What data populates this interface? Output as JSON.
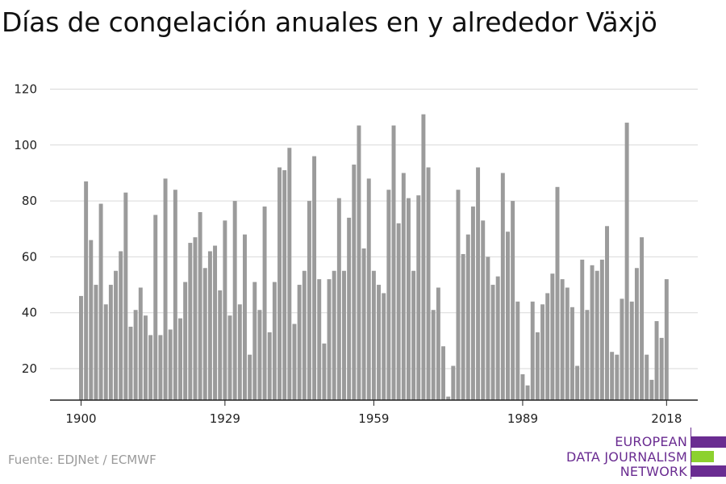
{
  "title": "Días de congelación anuales en y alrededor Växjö",
  "source": "Fuente: EDJNet / ECMWF",
  "logo": {
    "lines": [
      "EUROPEAN",
      "DATA JOURNALISM",
      "NETWORK"
    ],
    "colors": {
      "purple": "#6a2c91",
      "green": "#8cd12e"
    }
  },
  "colors": {
    "bar": "#9b9b9b",
    "grid": "#d9d9d9",
    "axis": "#222222"
  },
  "chart_data": {
    "type": "bar",
    "title": "Días de congelación anuales en y alrededor Växjö",
    "xlabel": "",
    "ylabel": "",
    "x_ticks": [
      1900,
      1929,
      1959,
      1989,
      2018
    ],
    "y_ticks": [
      20,
      40,
      60,
      80,
      100,
      120
    ],
    "ylim": [
      8,
      120
    ],
    "grid": true,
    "x_start": 1900,
    "x_end": 2018,
    "values": [
      46,
      87,
      66,
      50,
      79,
      43,
      50,
      55,
      62,
      83,
      35,
      41,
      49,
      39,
      32,
      75,
      32,
      88,
      34,
      84,
      38,
      51,
      65,
      67,
      76,
      56,
      62,
      64,
      48,
      73,
      39,
      80,
      43,
      68,
      25,
      51,
      41,
      78,
      33,
      51,
      92,
      91,
      99,
      36,
      50,
      55,
      80,
      96,
      52,
      29,
      52,
      55,
      81,
      55,
      74,
      93,
      107,
      63,
      88,
      55,
      50,
      47,
      84,
      107,
      72,
      90,
      81,
      55,
      82,
      111,
      92,
      41,
      49,
      28,
      10,
      21,
      84,
      61,
      68,
      78,
      92,
      73,
      60,
      50,
      53,
      90,
      69,
      80,
      44,
      18,
      14,
      44,
      33,
      43,
      47,
      54,
      85,
      52,
      49,
      42,
      21,
      59,
      41,
      57,
      55,
      59,
      71,
      26,
      25,
      45,
      108,
      44,
      56,
      67,
      25,
      16,
      37,
      31,
      52
    ]
  }
}
